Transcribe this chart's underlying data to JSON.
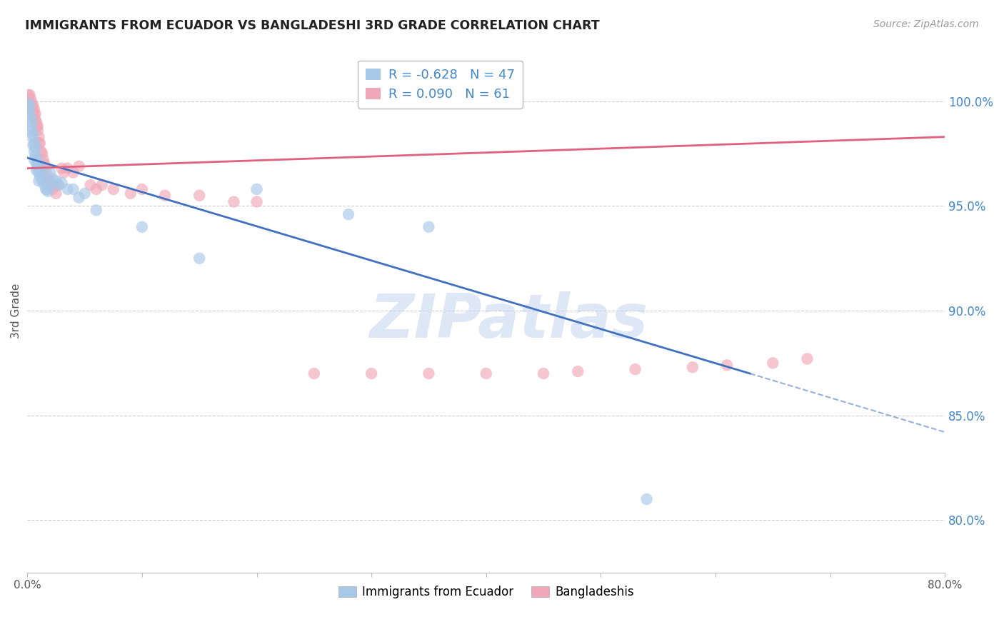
{
  "title": "IMMIGRANTS FROM ECUADOR VS BANGLADESHI 3RD GRADE CORRELATION CHART",
  "source": "Source: ZipAtlas.com",
  "ylabel": "3rd Grade",
  "right_yticks": [
    "100.0%",
    "95.0%",
    "90.0%",
    "85.0%",
    "80.0%"
  ],
  "right_ytick_vals": [
    1.0,
    0.95,
    0.9,
    0.85,
    0.8
  ],
  "blue_R": -0.628,
  "blue_N": 47,
  "pink_R": 0.09,
  "pink_N": 61,
  "blue_color": "#A8C8E8",
  "pink_color": "#F0A8B8",
  "blue_line_color": "#4070C0",
  "pink_line_color": "#E06080",
  "watermark_color": "#C8D8F0",
  "xmin": 0.0,
  "xmax": 0.8,
  "ymin": 0.775,
  "ymax": 1.025,
  "blue_line_x0": 0.0,
  "blue_line_y0": 0.973,
  "blue_line_x1": 0.63,
  "blue_line_y1": 0.87,
  "blue_line_x2": 0.8,
  "blue_line_y2": 0.842,
  "pink_line_x0": 0.0,
  "pink_line_y0": 0.968,
  "pink_line_x1": 0.8,
  "pink_line_y1": 0.983,
  "blue_scatter_x": [
    0.001,
    0.001,
    0.002,
    0.002,
    0.003,
    0.003,
    0.004,
    0.004,
    0.004,
    0.005,
    0.005,
    0.006,
    0.006,
    0.006,
    0.007,
    0.007,
    0.008,
    0.008,
    0.009,
    0.009,
    0.01,
    0.01,
    0.011,
    0.012,
    0.013,
    0.014,
    0.015,
    0.016,
    0.017,
    0.018,
    0.019,
    0.02,
    0.022,
    0.025,
    0.027,
    0.03,
    0.035,
    0.04,
    0.045,
    0.05,
    0.06,
    0.1,
    0.15,
    0.2,
    0.28,
    0.35,
    0.54
  ],
  "blue_scatter_y": [
    0.999,
    0.996,
    0.998,
    0.994,
    0.992,
    0.988,
    0.99,
    0.986,
    0.983,
    0.984,
    0.979,
    0.98,
    0.976,
    0.972,
    0.978,
    0.974,
    0.97,
    0.967,
    0.972,
    0.968,
    0.966,
    0.962,
    0.964,
    0.968,
    0.962,
    0.965,
    0.96,
    0.958,
    0.958,
    0.957,
    0.96,
    0.966,
    0.963,
    0.962,
    0.96,
    0.961,
    0.958,
    0.958,
    0.954,
    0.956,
    0.948,
    0.94,
    0.925,
    0.958,
    0.946,
    0.94,
    0.81
  ],
  "pink_scatter_x": [
    0.001,
    0.001,
    0.002,
    0.002,
    0.003,
    0.003,
    0.004,
    0.004,
    0.005,
    0.005,
    0.006,
    0.006,
    0.007,
    0.007,
    0.008,
    0.008,
    0.009,
    0.009,
    0.01,
    0.01,
    0.011,
    0.012,
    0.013,
    0.014,
    0.015,
    0.016,
    0.017,
    0.018,
    0.019,
    0.02,
    0.021,
    0.022,
    0.023,
    0.025,
    0.027,
    0.03,
    0.032,
    0.035,
    0.04,
    0.045,
    0.055,
    0.06,
    0.065,
    0.075,
    0.09,
    0.1,
    0.12,
    0.15,
    0.18,
    0.2,
    0.25,
    0.3,
    0.35,
    0.4,
    0.45,
    0.48,
    0.53,
    0.58,
    0.61,
    0.65,
    0.68
  ],
  "pink_scatter_y": [
    1.003,
    1.0,
    1.003,
    0.999,
    1.001,
    0.998,
    0.999,
    0.996,
    0.998,
    0.995,
    0.996,
    0.993,
    0.994,
    0.991,
    0.99,
    0.988,
    0.988,
    0.986,
    0.983,
    0.98,
    0.98,
    0.976,
    0.975,
    0.972,
    0.97,
    0.968,
    0.965,
    0.963,
    0.962,
    0.961,
    0.96,
    0.958,
    0.96,
    0.956,
    0.96,
    0.968,
    0.966,
    0.968,
    0.966,
    0.969,
    0.96,
    0.958,
    0.96,
    0.958,
    0.956,
    0.958,
    0.955,
    0.955,
    0.952,
    0.952,
    0.87,
    0.87,
    0.87,
    0.87,
    0.87,
    0.871,
    0.872,
    0.873,
    0.874,
    0.875,
    0.877
  ]
}
